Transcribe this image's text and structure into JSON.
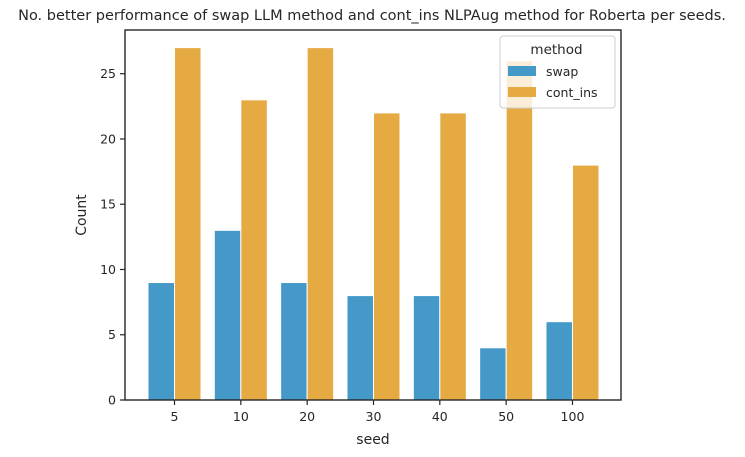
{
  "chart_data": {
    "type": "bar",
    "title": "No. better performance of swap LLM method and cont_ins NLPAug method for Roberta per seeds.",
    "xlabel": "seed",
    "ylabel": "Count",
    "categories": [
      "5",
      "10",
      "20",
      "30",
      "40",
      "50",
      "100"
    ],
    "series": [
      {
        "name": "swap",
        "values": [
          9,
          13,
          9,
          8,
          8,
          4,
          6
        ],
        "color": "#4499c9"
      },
      {
        "name": "cont_ins",
        "values": [
          27,
          23,
          27,
          22,
          22,
          26,
          18
        ],
        "color": "#e6aa43"
      }
    ],
    "ylim": [
      0,
      28.35
    ],
    "yticks": [
      0,
      5,
      10,
      15,
      20,
      25
    ],
    "grid": false,
    "legend": {
      "title": "method",
      "placement": "top-right"
    }
  }
}
